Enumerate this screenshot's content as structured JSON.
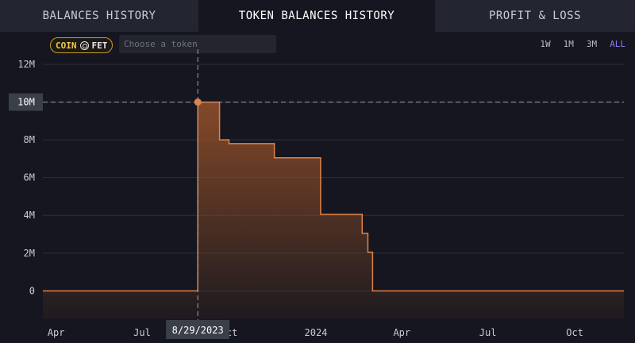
{
  "tabs": [
    {
      "label": "BALANCES HISTORY",
      "active": false
    },
    {
      "label": "TOKEN BALANCES HISTORY",
      "active": true
    },
    {
      "label": "PROFIT & LOSS",
      "active": false
    }
  ],
  "token_filter": {
    "chip_prefix": "COIN",
    "chip_icon": "coin-icon",
    "chip_token": "FET",
    "placeholder": "Choose a token"
  },
  "ranges": [
    {
      "label": "1W",
      "active": false
    },
    {
      "label": "1M",
      "active": false
    },
    {
      "label": "3M",
      "active": false
    },
    {
      "label": "ALL",
      "active": true
    }
  ],
  "colors": {
    "line": "#e0834a",
    "fill_top": "#8a4c29",
    "grid": "#2c2f3a",
    "crosshair": "#9aa0ad",
    "active_range": "#8f7cf0"
  },
  "crosshair": {
    "x_label": "8/29/2023",
    "y_label": "10M",
    "x_value": "2023-08-29",
    "y_value": 10000000
  },
  "chart_data": {
    "type": "area",
    "step": true,
    "title": "",
    "xlabel": "",
    "ylabel": "",
    "ylim": [
      -1500000,
      12800000
    ],
    "xlim": [
      "2023-03-18",
      "2024-11-22"
    ],
    "grid": true,
    "y_ticks": [
      {
        "value": 12000000,
        "label": "12M"
      },
      {
        "value": 8000000,
        "label": "8M"
      },
      {
        "value": 6000000,
        "label": "6M"
      },
      {
        "value": 4000000,
        "label": "4M"
      },
      {
        "value": 2000000,
        "label": "2M"
      },
      {
        "value": 0,
        "label": "0"
      }
    ],
    "x_ticks": [
      {
        "date": "2023-04-01",
        "label": "Apr"
      },
      {
        "date": "2023-07-01",
        "label": "Jul"
      },
      {
        "date": "2023-10-01",
        "label": "Oct"
      },
      {
        "date": "2024-01-01",
        "label": "2024"
      },
      {
        "date": "2024-04-01",
        "label": "Apr"
      },
      {
        "date": "2024-07-01",
        "label": "Jul"
      },
      {
        "date": "2024-10-01",
        "label": "Oct"
      }
    ],
    "series": [
      {
        "points": [
          {
            "x": "2023-03-18",
            "y": 0
          },
          {
            "x": "2023-08-27",
            "y": 0
          },
          {
            "x": "2023-08-29",
            "y": 10000000
          },
          {
            "x": "2023-09-21",
            "y": 8000000
          },
          {
            "x": "2023-10-01",
            "y": 7800000
          },
          {
            "x": "2023-11-18",
            "y": 7050000
          },
          {
            "x": "2024-01-06",
            "y": 4050000
          },
          {
            "x": "2024-02-19",
            "y": 3050000
          },
          {
            "x": "2024-02-25",
            "y": 2050000
          },
          {
            "x": "2024-03-01",
            "y": 0
          },
          {
            "x": "2024-11-22",
            "y": 0
          }
        ]
      }
    ]
  }
}
